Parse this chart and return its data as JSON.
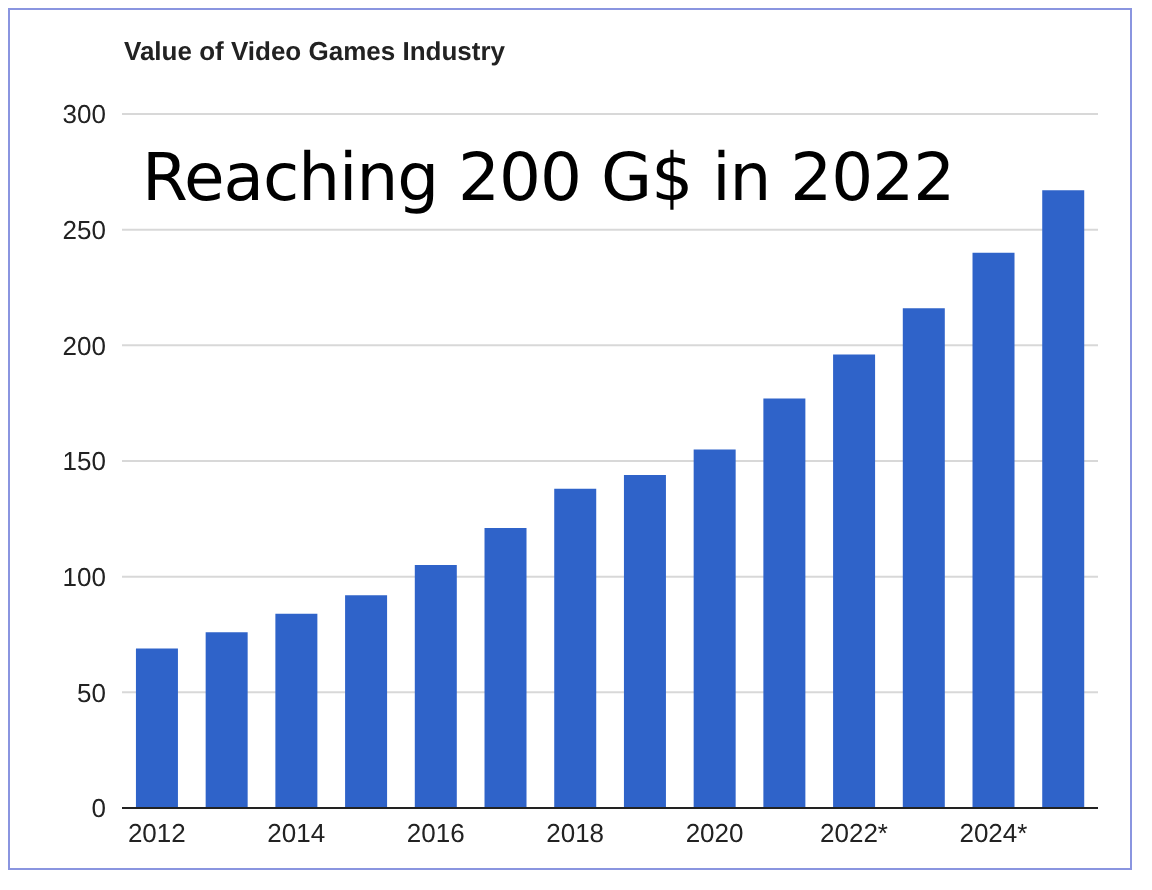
{
  "chart_data": {
    "type": "bar",
    "title": "Value of Video Games Industry",
    "annotations": [
      "Reaching 200 G$ in 2022"
    ],
    "categories": [
      "2012",
      null,
      "2014",
      null,
      "2016",
      null,
      "2018",
      null,
      "2020",
      null,
      "2022*",
      null,
      "2024*",
      null
    ],
    "values": [
      69,
      76,
      84,
      92,
      105,
      121,
      138,
      144,
      155,
      177,
      196,
      216,
      240,
      267
    ],
    "color": "#2f63c9",
    "ylim": [
      0,
      300
    ],
    "yticks": [
      0,
      50,
      100,
      150,
      200,
      250,
      300
    ],
    "grid": "y",
    "legend": false
  }
}
